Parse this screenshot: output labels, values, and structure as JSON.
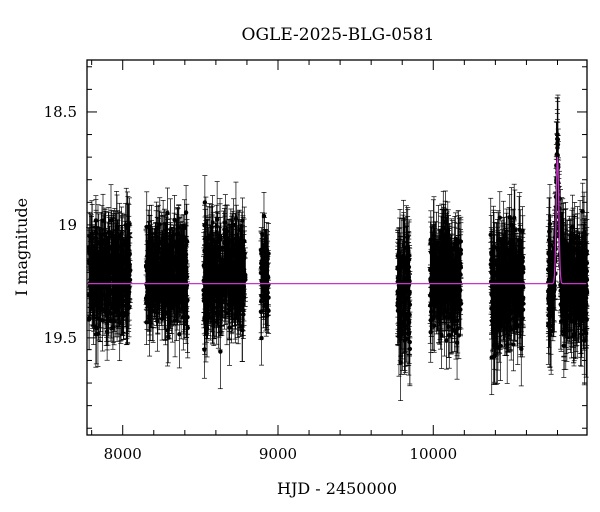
{
  "chart_data": {
    "type": "scatter",
    "title": "OGLE-2025-BLG-0581",
    "xlabel": "HJD - 2450000",
    "ylabel": "I magnitude",
    "xlim": [
      7770,
      10990
    ],
    "ylim": [
      19.93,
      18.27
    ],
    "y_inverted": true,
    "x_ticks": [
      8000,
      9000,
      10000
    ],
    "y_ticks": [
      18.5,
      19,
      19.5
    ],
    "grid": false,
    "legend": "none",
    "series": [
      {
        "type": "errorbar-scatter",
        "color": "#000000",
        "seasons": [
          {
            "x_start": 7780,
            "x_end": 8050,
            "center_mag": 19.22,
            "scatter": 0.18,
            "err": 0.14
          },
          {
            "x_start": 8150,
            "x_end": 8420,
            "center_mag": 19.22,
            "scatter": 0.18,
            "err": 0.14
          },
          {
            "x_start": 8520,
            "x_end": 8790,
            "center_mag": 19.23,
            "scatter": 0.18,
            "err": 0.14
          },
          {
            "x_start": 8890,
            "x_end": 8940,
            "center_mag": 19.22,
            "scatter": 0.15,
            "err": 0.12
          },
          {
            "x_start": 9770,
            "x_end": 9850,
            "center_mag": 19.28,
            "scatter": 0.22,
            "err": 0.18
          },
          {
            "x_start": 9980,
            "x_end": 10180,
            "center_mag": 19.24,
            "scatter": 0.18,
            "err": 0.15
          },
          {
            "x_start": 10370,
            "x_end": 10580,
            "center_mag": 19.26,
            "scatter": 0.2,
            "err": 0.16
          },
          {
            "x_start": 10740,
            "x_end": 10990,
            "center_mag": 19.28,
            "scatter": 0.2,
            "err": 0.17
          }
        ]
      },
      {
        "type": "line",
        "color": "#cc33cc",
        "baseline_mag": 19.26,
        "peak_x": 10800,
        "peak_mag": 18.7,
        "tE": 12
      }
    ]
  }
}
